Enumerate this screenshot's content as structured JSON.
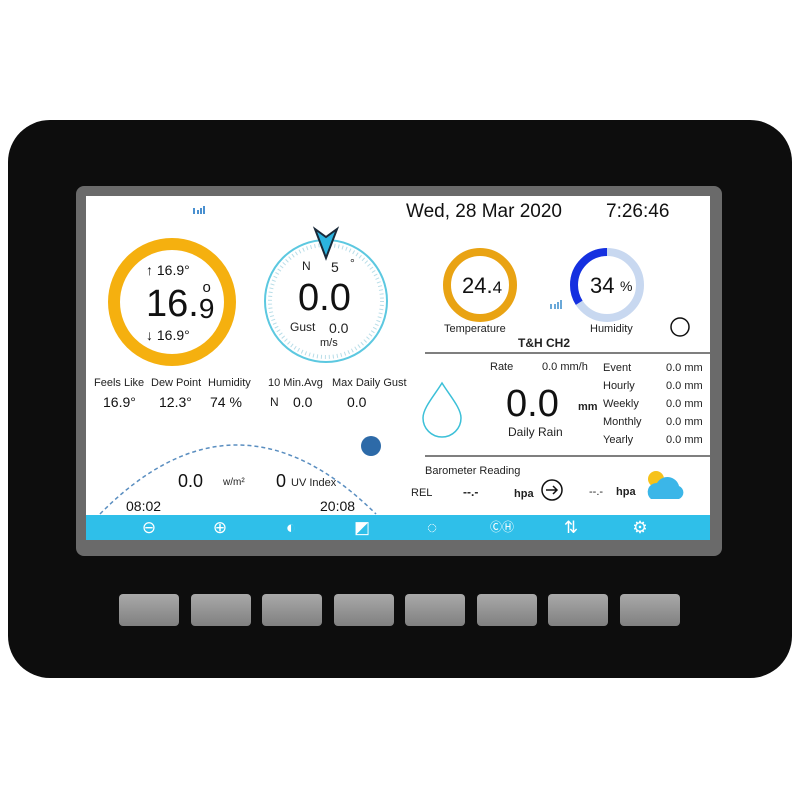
{
  "header": {
    "date": "Wed, 28 Mar 2020",
    "time": "7:26:46",
    "signal_icon": "signal-icon"
  },
  "outdoor": {
    "high": "↑ 16.9°",
    "temp_main": "16.",
    "temp_dec": "9",
    "degree": "o",
    "low": "↓ 16.9°",
    "ring_color": "#f5b00f"
  },
  "wind": {
    "dir": "N",
    "deg": "5",
    "deg_sym": "°",
    "speed": "0.0",
    "gust_label": "Gust",
    "gust": "0.0",
    "unit": "m/s",
    "ring_color": "#5cc8e0"
  },
  "stats": [
    {
      "label": "Feels Like",
      "value": "16.9°"
    },
    {
      "label": "Dew Point",
      "value": "12.3°"
    },
    {
      "label": "Humidity",
      "value": "74 %"
    },
    {
      "label": "10 Min.Avg",
      "value": "0.0",
      "prefix": "N"
    },
    {
      "label": "Max Daily Gust",
      "value": "0.0"
    }
  ],
  "channel": {
    "temp": "24.",
    "temp_dec": "4",
    "temp_label": "Temperature",
    "humidity": "34",
    "hum_unit": "%",
    "humidity_label": "Humidity",
    "humidity_percent": 34,
    "name": "T&H CH2",
    "hum_color": "#1530e0"
  },
  "rain": {
    "rate_label": "Rate",
    "rate": "0.0 mm/h",
    "daily": "0.0",
    "unit": "mm",
    "daily_label": "Daily Rain",
    "rows": [
      {
        "label": "Event",
        "value": "0.0 mm"
      },
      {
        "label": "Hourly",
        "value": "0.0 mm"
      },
      {
        "label": "Weekly",
        "value": "0.0 mm"
      },
      {
        "label": "Monthly",
        "value": "0.0 mm"
      },
      {
        "label": "Yearly",
        "value": "0.0 mm"
      }
    ]
  },
  "solar": {
    "radiation": "0.0",
    "rad_unit": "w/m²",
    "uv": "0",
    "uv_label": "UV Index",
    "sunrise": "08:02",
    "sunset": "20:08"
  },
  "barometer": {
    "title": "Barometer Reading",
    "mode": "REL",
    "value": "--.-",
    "unit": "hpa",
    "value2": "--.-",
    "unit2": "hpa",
    "forecast_icon": "partly-cloudy-icon"
  },
  "toolbar": [
    "zoom-out-icon",
    "zoom-in-icon",
    "contrast-icon",
    "brightness-icon",
    "sensor-icon",
    "channel-cycle-icon",
    "sort-icon",
    "settings-icon"
  ]
}
